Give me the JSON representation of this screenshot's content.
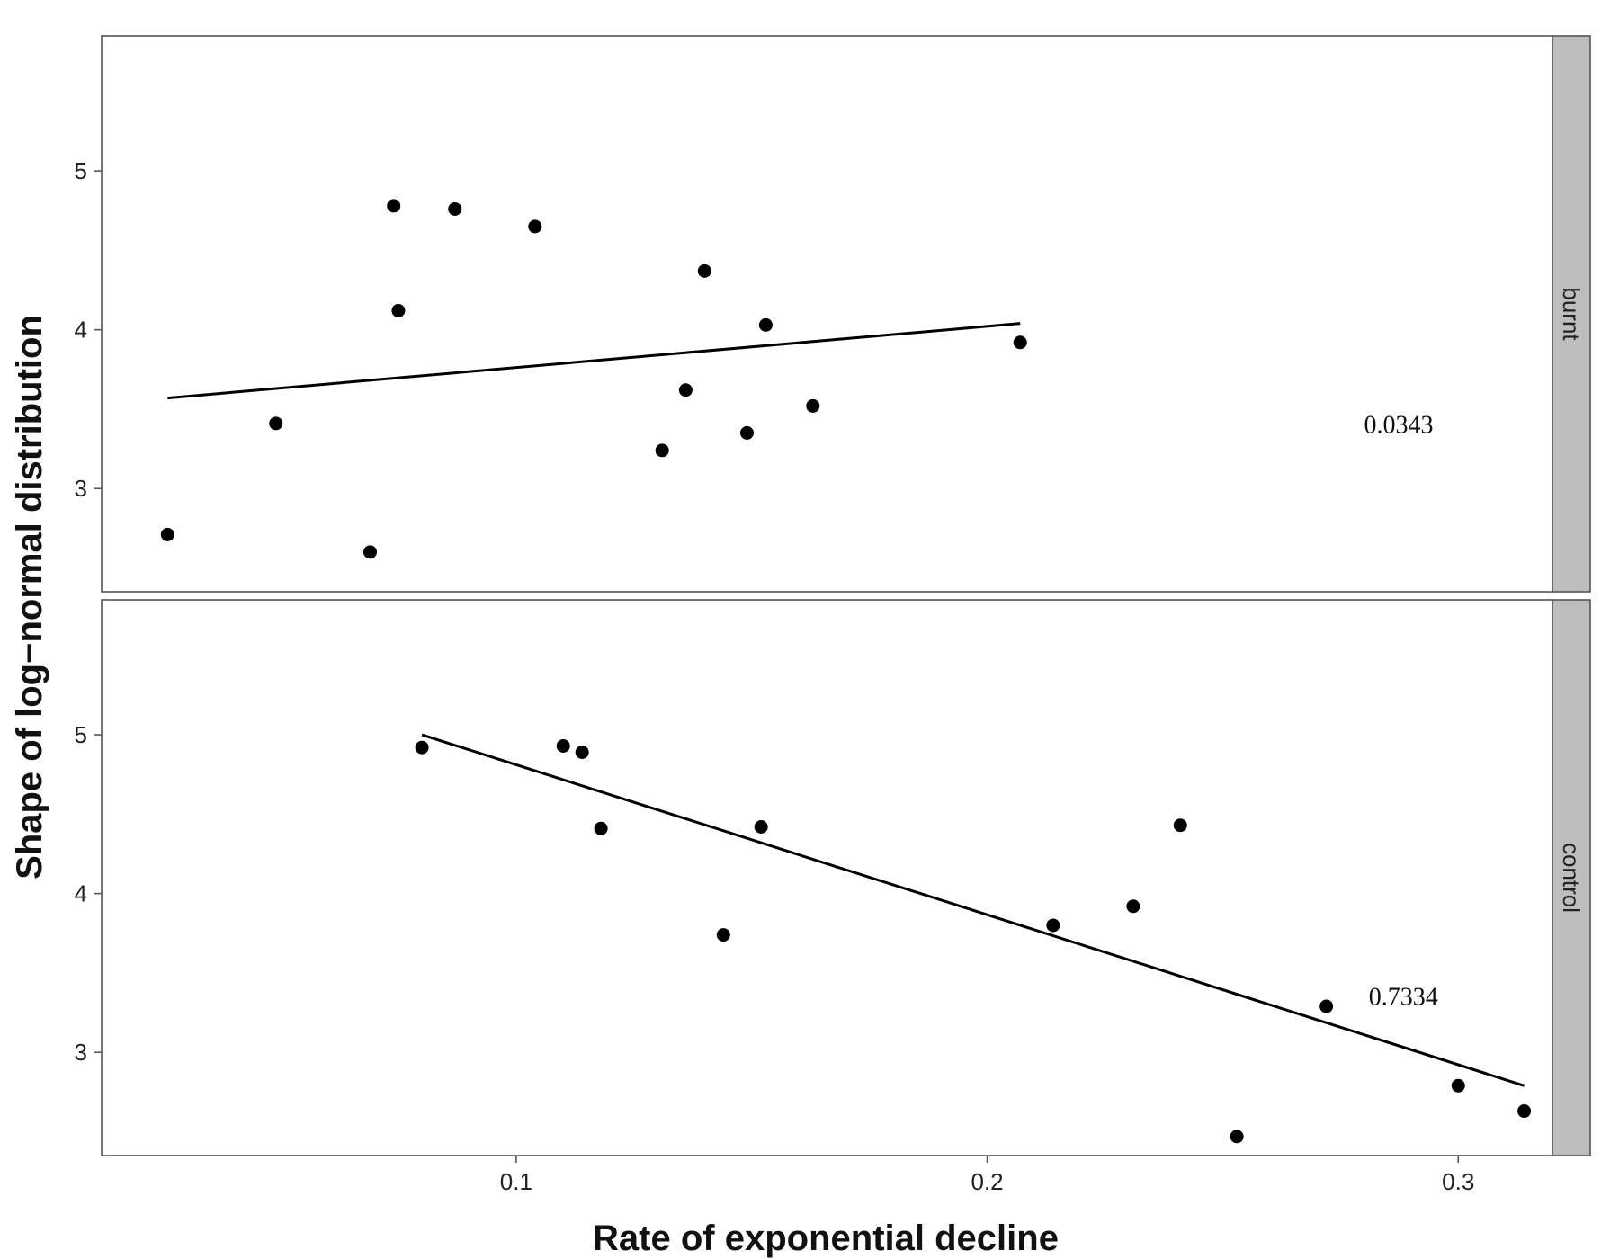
{
  "chart_data": {
    "type": "scatter",
    "xlabel": "Rate of exponential decline",
    "ylabel": "Shape of log−normal distribution",
    "xlim": [
      0.012,
      0.32
    ],
    "ylim": [
      2.35,
      5.85
    ],
    "x_ticks": [
      0.1,
      0.2,
      0.3
    ],
    "x_tick_labels": [
      "0.1",
      "0.2",
      "0.3"
    ],
    "y_ticks": [
      3,
      4,
      5
    ],
    "y_tick_labels": [
      "3",
      "4",
      "5"
    ],
    "grid": false,
    "panels": [
      {
        "strip_label": "burnt",
        "annotation": "0.0343",
        "annotation_at": [
          0.28,
          3.35
        ],
        "points": [
          {
            "x": 0.026,
            "y": 2.71
          },
          {
            "x": 0.049,
            "y": 3.41
          },
          {
            "x": 0.069,
            "y": 2.6
          },
          {
            "x": 0.074,
            "y": 4.78
          },
          {
            "x": 0.075,
            "y": 4.12
          },
          {
            "x": 0.087,
            "y": 4.76
          },
          {
            "x": 0.104,
            "y": 4.65
          },
          {
            "x": 0.131,
            "y": 3.24
          },
          {
            "x": 0.136,
            "y": 3.62
          },
          {
            "x": 0.14,
            "y": 4.37
          },
          {
            "x": 0.149,
            "y": 3.35
          },
          {
            "x": 0.153,
            "y": 4.03
          },
          {
            "x": 0.163,
            "y": 3.52
          },
          {
            "x": 0.207,
            "y": 3.92
          }
        ],
        "fit_line": [
          {
            "x": 0.026,
            "y": 3.57
          },
          {
            "x": 0.207,
            "y": 4.04
          }
        ]
      },
      {
        "strip_label": "control",
        "annotation": "0.7334",
        "annotation_at": [
          0.281,
          3.3
        ],
        "points": [
          {
            "x": 0.08,
            "y": 4.92
          },
          {
            "x": 0.11,
            "y": 4.93
          },
          {
            "x": 0.114,
            "y": 4.89
          },
          {
            "x": 0.118,
            "y": 4.41
          },
          {
            "x": 0.144,
            "y": 3.74
          },
          {
            "x": 0.152,
            "y": 4.42
          },
          {
            "x": 0.214,
            "y": 3.8
          },
          {
            "x": 0.231,
            "y": 3.92
          },
          {
            "x": 0.241,
            "y": 4.43
          },
          {
            "x": 0.253,
            "y": 2.47
          },
          {
            "x": 0.272,
            "y": 3.29
          },
          {
            "x": 0.3,
            "y": 2.79
          },
          {
            "x": 0.314,
            "y": 2.63
          }
        ],
        "fit_line": [
          {
            "x": 0.08,
            "y": 5.0
          },
          {
            "x": 0.314,
            "y": 2.79
          }
        ]
      }
    ]
  }
}
